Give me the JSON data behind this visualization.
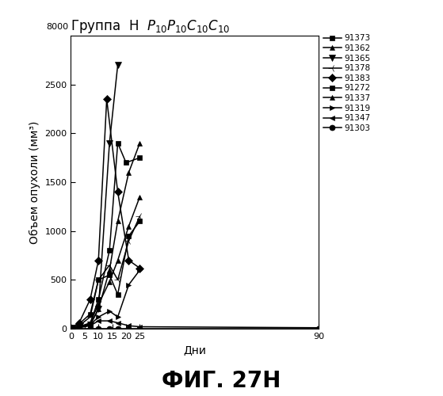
{
  "title_rus": "Группа  Н",
  "title_formula": " $P_{10}P_{10}C_{10}C_{10}$",
  "xlabel": "Дни",
  "ylabel": "Объем опухоли (мм³)",
  "fig_label": "ФИГ. 27Н",
  "xlim": [
    0,
    90
  ],
  "ylim": [
    0,
    3000
  ],
  "yticks": [
    0,
    500,
    1000,
    1500,
    2000,
    2500
  ],
  "xticks": [
    0,
    5,
    10,
    15,
    20,
    25,
    90
  ],
  "series": [
    {
      "label": "91373",
      "marker": "s",
      "days": [
        0,
        3,
        7,
        10,
        14,
        17,
        20,
        25
      ],
      "values": [
        10,
        20,
        50,
        300,
        800,
        1900,
        1700,
        1750
      ]
    },
    {
      "label": "91362",
      "marker": "^",
      "days": [
        0,
        3,
        7,
        10,
        14,
        17,
        21,
        25
      ],
      "values": [
        10,
        20,
        40,
        200,
        600,
        1100,
        1600,
        1900
      ]
    },
    {
      "label": "91365",
      "marker": "v",
      "days": [
        0,
        3,
        7,
        10,
        14,
        17
      ],
      "values": [
        5,
        15,
        40,
        200,
        1900,
        2700
      ]
    },
    {
      "label": "91378",
      "marker": "3",
      "days": [
        0,
        3,
        7,
        10,
        14,
        17,
        21,
        25
      ],
      "values": [
        10,
        30,
        120,
        500,
        650,
        500,
        900,
        1150
      ]
    },
    {
      "label": "91383",
      "marker": "D",
      "days": [
        0,
        3,
        7,
        10,
        13,
        17,
        21,
        25
      ],
      "values": [
        10,
        60,
        300,
        700,
        2350,
        1400,
        700,
        620
      ]
    },
    {
      "label": "91272",
      "marker": "s",
      "days": [
        0,
        3,
        7,
        10,
        14,
        17,
        21,
        25
      ],
      "values": [
        10,
        50,
        150,
        500,
        550,
        350,
        950,
        1100
      ]
    },
    {
      "label": "91337",
      "marker": "^",
      "days": [
        0,
        3,
        7,
        10,
        14,
        17,
        21,
        25
      ],
      "values": [
        10,
        20,
        60,
        250,
        480,
        700,
        1050,
        1350
      ]
    },
    {
      "label": "91319",
      "marker": ">",
      "days": [
        0,
        3,
        7,
        10,
        14,
        17,
        21,
        25
      ],
      "values": [
        5,
        15,
        40,
        120,
        180,
        120,
        450,
        600
      ]
    },
    {
      "label": "91347",
      "marker": "<",
      "days": [
        0,
        3,
        7,
        10,
        14,
        17,
        21,
        25,
        90
      ],
      "values": [
        5,
        10,
        30,
        80,
        80,
        60,
        30,
        20,
        10
      ]
    },
    {
      "label": "91303",
      "marker": "o",
      "days": [
        0,
        3,
        7,
        10,
        14,
        17,
        21,
        25,
        90
      ],
      "values": [
        3,
        3,
        3,
        3,
        3,
        3,
        3,
        3,
        3
      ]
    }
  ],
  "marker_sizes": [
    5,
    5,
    6,
    7,
    5,
    5,
    5,
    5,
    5,
    5
  ],
  "background_color": "#ffffff",
  "line_color": "#000000",
  "fontsize_title": 12,
  "fontsize_axis_label": 10,
  "fontsize_tick": 8,
  "fontsize_legend": 7.5,
  "fontsize_fig_label": 20
}
